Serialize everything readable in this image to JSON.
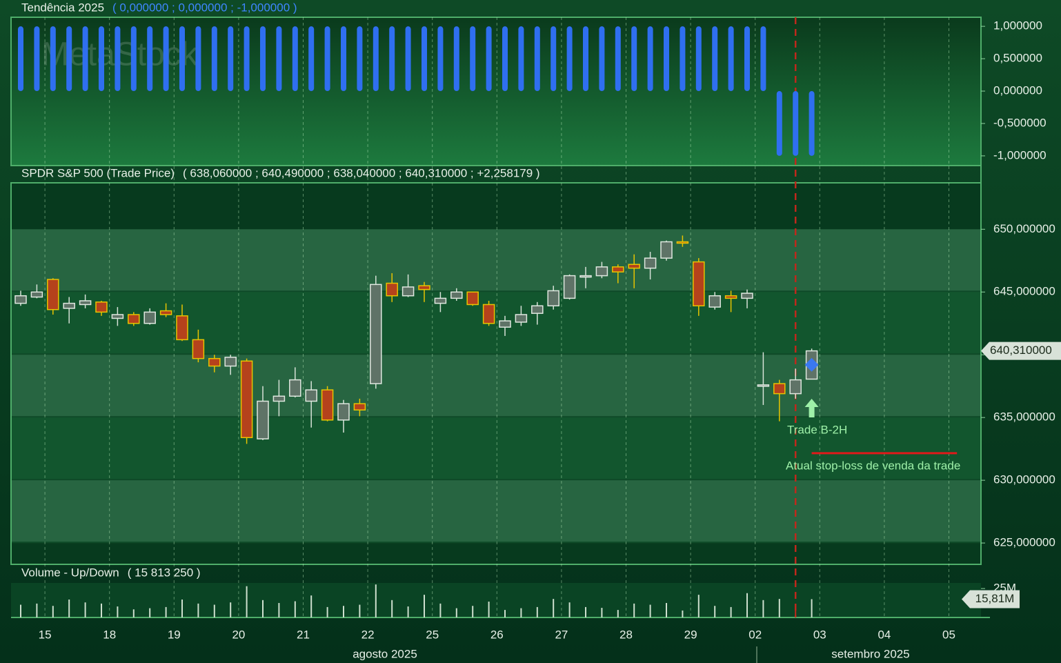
{
  "watermark": "MetaStock",
  "chart_data": [
    {
      "type": "bar",
      "title": "Tendência 2025",
      "header": "( 0,000000 ;  0,000000 ;  -1,000000 )",
      "color": "#2f6ff0",
      "values": [
        1,
        1,
        1,
        1,
        1,
        1,
        1,
        1,
        1,
        1,
        1,
        1,
        1,
        1,
        1,
        1,
        1,
        1,
        1,
        1,
        1,
        1,
        1,
        1,
        1,
        1,
        1,
        1,
        1,
        1,
        1,
        1,
        1,
        1,
        1,
        1,
        1,
        1,
        1,
        1,
        1,
        1,
        1,
        1,
        1,
        1,
        1,
        -1,
        -1,
        -1,
        null,
        null,
        null,
        null,
        null,
        null,
        null,
        null,
        null,
        null
      ],
      "ylim": [
        -1.15,
        1.14
      ],
      "yticks": [
        {
          "value": -1,
          "label": "-1,000000"
        },
        {
          "value": -0.5,
          "label": "-0,500000"
        },
        {
          "value": 0,
          "label": "0,000000"
        },
        {
          "value": 0.5,
          "label": "0,500000"
        },
        {
          "value": 1,
          "label": "1,000000"
        }
      ]
    },
    {
      "type": "candlestick",
      "title": "SPDR S&P 500 (Trade Price)",
      "header": "( 638,060000 ;  640,490000 ;  638,040000 ;  640,310000 ;  +2,258179 )",
      "categories": [
        null,
        null,
        "15",
        null,
        null,
        null,
        "18",
        null,
        null,
        null,
        "19",
        null,
        null,
        null,
        "20",
        null,
        null,
        null,
        "21",
        null,
        null,
        null,
        "22",
        null,
        null,
        null,
        "25",
        null,
        null,
        null,
        "26",
        null,
        null,
        null,
        "27",
        null,
        null,
        null,
        "28",
        null,
        null,
        null,
        "29",
        null,
        null,
        null,
        "02",
        null,
        null,
        null,
        "03",
        null,
        null,
        null,
        "04",
        null,
        null,
        null,
        "05",
        null
      ],
      "month_labels": [
        "agosto 2025",
        "setembro 2025"
      ],
      "open": [
        644.1,
        644.6,
        646.0,
        643.7,
        644.0,
        644.2,
        642.9,
        643.2,
        642.5,
        643.5,
        643.1,
        641.2,
        639.7,
        639.1,
        639.5,
        633.3,
        636.3,
        636.7,
        636.3,
        637.2,
        634.8,
        636.1,
        637.7,
        645.7,
        644.7,
        645.5,
        644.1,
        644.5,
        645.0,
        644.0,
        642.2,
        642.6,
        643.3,
        643.9,
        644.5,
        646.2,
        646.3,
        647.0,
        647.2,
        646.9,
        647.7,
        649.0,
        647.4,
        643.8,
        644.7,
        644.5,
        637.5,
        637.7,
        636.9,
        638.06,
        null,
        null,
        null,
        null,
        null,
        null,
        null,
        null,
        null,
        null
      ],
      "high": [
        645.1,
        645.6,
        646.1,
        644.6,
        644.8,
        644.3,
        643.8,
        643.4,
        643.7,
        644.1,
        644.0,
        642.0,
        640.0,
        640.0,
        639.7,
        637.5,
        638.0,
        639.0,
        637.9,
        637.5,
        636.4,
        636.5,
        646.3,
        646.5,
        646.4,
        645.8,
        645.0,
        645.3,
        645.0,
        644.3,
        643.1,
        643.9,
        644.2,
        645.5,
        646.4,
        647.0,
        647.4,
        647.2,
        648.0,
        648.2,
        649.1,
        649.5,
        647.7,
        645.0,
        645.1,
        645.2,
        640.2,
        638.0,
        638.9,
        640.49,
        null,
        null,
        null,
        null,
        null,
        null,
        null,
        null,
        null,
        null
      ],
      "low": [
        643.9,
        644.5,
        643.2,
        642.5,
        643.7,
        643.1,
        642.3,
        642.3,
        642.4,
        643.0,
        641.1,
        639.4,
        638.6,
        638.4,
        632.9,
        633.2,
        635.1,
        636.6,
        634.2,
        634.7,
        633.8,
        635.1,
        637.3,
        644.2,
        644.6,
        644.2,
        643.4,
        644.3,
        643.9,
        642.3,
        641.5,
        642.3,
        642.4,
        643.6,
        644.4,
        645.3,
        646.1,
        645.7,
        645.3,
        646.0,
        647.5,
        648.6,
        643.1,
        643.6,
        643.4,
        643.7,
        636.0,
        634.7,
        636.5,
        638.04,
        null,
        null,
        null,
        null,
        null,
        null,
        null,
        null,
        null,
        null
      ],
      "close": [
        644.7,
        645.0,
        643.6,
        644.1,
        644.3,
        643.4,
        643.2,
        642.5,
        643.4,
        643.2,
        641.2,
        639.7,
        639.1,
        639.8,
        633.4,
        636.3,
        636.7,
        638.0,
        637.2,
        634.8,
        636.1,
        635.6,
        645.6,
        644.7,
        645.4,
        645.2,
        644.5,
        645.0,
        644.0,
        642.5,
        642.7,
        643.2,
        643.9,
        645.1,
        646.3,
        646.3,
        647.0,
        646.6,
        646.9,
        647.7,
        649.0,
        648.9,
        643.9,
        644.7,
        644.5,
        644.9,
        637.6,
        636.9,
        638.0,
        640.31,
        null,
        null,
        null,
        null,
        null,
        null,
        null,
        null,
        null,
        null
      ],
      "up_color": "#5f7367",
      "down_color": "#b5421c",
      "ylim": [
        623.3,
        653.7
      ],
      "yticks": [
        {
          "value": 625,
          "label": "625,000000"
        },
        {
          "value": 630,
          "label": "630,000000"
        },
        {
          "value": 635,
          "label": "635,000000"
        },
        {
          "value": 640,
          "label": "640,000000"
        },
        {
          "value": 645,
          "label": "645,000000"
        },
        {
          "value": 650,
          "label": "650,000000"
        }
      ],
      "last_price": {
        "value": 640.31,
        "label": "640,310000"
      },
      "marker_index": 48,
      "trade": {
        "label": "Trade B-2H",
        "index": 49,
        "value": 639.2
      },
      "stop_loss": {
        "label": "Atual stop-loss de venda da trade",
        "value": 632.16,
        "from": 49,
        "to": 58
      }
    },
    {
      "type": "bar",
      "title": "Volume - Up/Down",
      "header": "( 15 813 250 )",
      "color": "#cfe0cf",
      "values": [
        11,
        12,
        10,
        15.5,
        13,
        12,
        9.5,
        7,
        8,
        9,
        15.5,
        12,
        11,
        13,
        27,
        15,
        12.5,
        14,
        19,
        9,
        10,
        11,
        28.5,
        15,
        9.5,
        19.6,
        12,
        8,
        10,
        13.7,
        6.5,
        8,
        9,
        16,
        13,
        9,
        8.3,
        6.5,
        12,
        11,
        12.5,
        6,
        19.6,
        10,
        9,
        21,
        15,
        16,
        11,
        15.81,
        null,
        null,
        null,
        null,
        null,
        null,
        null,
        null,
        null,
        null
      ],
      "ylim": [
        0,
        29.8
      ],
      "yticks": [
        {
          "value": 25,
          "label": "25M"
        }
      ],
      "last_value": {
        "value": 15.81,
        "label": "15,81M"
      }
    }
  ]
}
